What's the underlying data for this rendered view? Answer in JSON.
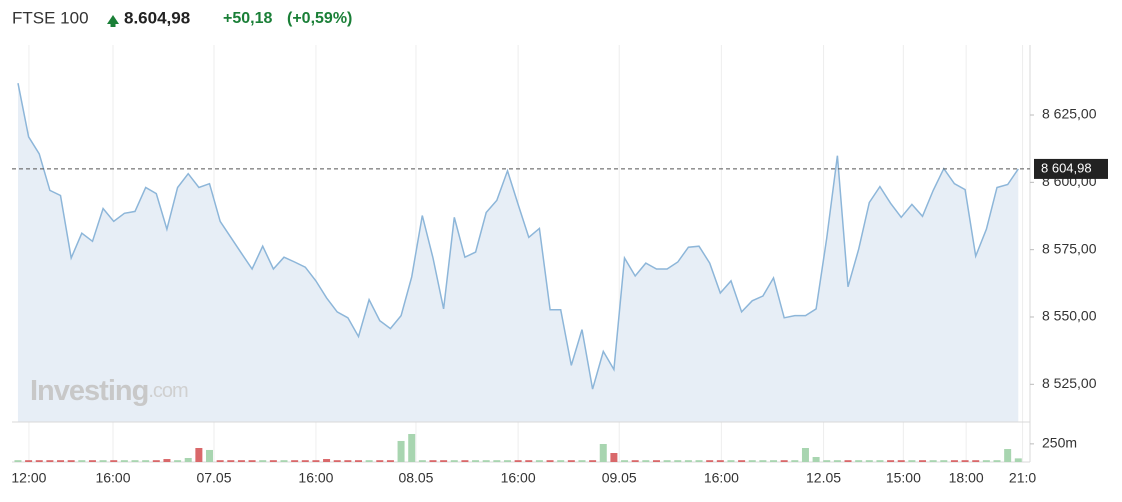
{
  "header": {
    "name": "FTSE 100",
    "price": "8.604,98",
    "change": "+50,18",
    "percent": "(+0,59%)"
  },
  "watermark": [
    "Investing",
    ".com"
  ],
  "chart_data": {
    "type": "area",
    "x": [
      0,
      1,
      2,
      3,
      4,
      5,
      6,
      7,
      8,
      9,
      10,
      11,
      12,
      13,
      14,
      15,
      16,
      17,
      18,
      19,
      20,
      21,
      22,
      23,
      24,
      25,
      26,
      27,
      28,
      29,
      30,
      31,
      32,
      33,
      34,
      35,
      36,
      37,
      38,
      39,
      40,
      41,
      42,
      43,
      44,
      45,
      46,
      47,
      48,
      49,
      50,
      51,
      52,
      53,
      54,
      55,
      56,
      57,
      58,
      59,
      60,
      61,
      62,
      63,
      64,
      65,
      66,
      67,
      68,
      69,
      70,
      71,
      72,
      73,
      74,
      75,
      76,
      77,
      78,
      79,
      80,
      81,
      82,
      83,
      84,
      85,
      86,
      87,
      88,
      89,
      90,
      91,
      92,
      93,
      94
    ],
    "series": [
      {
        "color": "#8db6d9",
        "fill": "#e7eef6",
        "values": [
          8636.8,
          8616.9,
          8610.6,
          8597.0,
          8595.1,
          8571.9,
          8581.1,
          8578.1,
          8590.3,
          8585.5,
          8588.5,
          8589.2,
          8598.1,
          8595.8,
          8582.6,
          8598.1,
          8603.2,
          8598.1,
          8599.5,
          8585.5,
          8579.6,
          8573.7,
          8567.8,
          8576.3,
          8567.8,
          8572.2,
          8570.4,
          8568.5,
          8563.4,
          8557.1,
          8551.9,
          8549.7,
          8542.7,
          8556.4,
          8548.6,
          8545.7,
          8550.5,
          8564.9,
          8587.7,
          8571.9,
          8553.0,
          8587.0,
          8572.2,
          8574.1,
          8588.8,
          8593.3,
          8604.3,
          8591.8,
          8579.6,
          8582.9,
          8552.7,
          8552.7,
          8532.0,
          8545.3,
          8523.2,
          8537.2,
          8530.5,
          8571.9,
          8565.2,
          8570.0,
          8567.8,
          8567.8,
          8570.4,
          8575.9,
          8576.3,
          8570.0,
          8558.9,
          8563.4,
          8551.9,
          8556.0,
          8557.8,
          8564.5,
          8549.7,
          8550.5,
          8550.5,
          8553.0,
          8579.2,
          8609.9,
          8561.2,
          8575.2,
          8592.5,
          8598.4,
          8592.2,
          8587.0,
          8591.8,
          8587.4,
          8597.0,
          8605.1,
          8599.5,
          8597.3,
          8572.6,
          8582.6,
          8598.1,
          8599.2,
          8604.98
        ]
      }
    ],
    "xlim": [
      -0.56,
      95.1
    ],
    "ylim": [
      8511,
      8651
    ],
    "yticks": [
      {
        "value": 8525,
        "label": "8 525,00"
      },
      {
        "value": 8550,
        "label": "8 550,00"
      },
      {
        "value": 8575,
        "label": "8 575,00"
      },
      {
        "value": 8600,
        "label": "8 600,00"
      },
      {
        "value": 8625,
        "label": "8 625,00"
      }
    ],
    "xticks": [
      {
        "value": 1.03,
        "label": "12:00"
      },
      {
        "value": 8.93,
        "label": "16:00"
      },
      {
        "value": 18.42,
        "label": "07.05"
      },
      {
        "value": 28.0,
        "label": "16:00"
      },
      {
        "value": 37.4,
        "label": "08.05"
      },
      {
        "value": 47.0,
        "label": "16:00"
      },
      {
        "value": 56.5,
        "label": "09.05"
      },
      {
        "value": 66.1,
        "label": "16:00"
      },
      {
        "value": 75.7,
        "label": "12.05"
      },
      {
        "value": 83.2,
        "label": "15:00"
      },
      {
        "value": 89.1,
        "label": "18:00"
      },
      {
        "value": 94.4,
        "label": "21:0"
      }
    ],
    "current": {
      "value": 8604.98,
      "label": "8 604,98"
    },
    "volume": {
      "values": [
        25,
        25,
        25,
        25,
        25,
        25,
        25,
        25,
        25,
        25,
        25,
        25,
        25,
        25,
        41,
        25,
        55,
        193,
        166,
        25,
        25,
        25,
        25,
        25,
        25,
        25,
        25,
        25,
        25,
        41,
        25,
        25,
        25,
        25,
        25,
        25,
        290,
        386,
        25,
        25,
        25,
        25,
        25,
        25,
        25,
        25,
        25,
        25,
        25,
        25,
        25,
        25,
        25,
        25,
        25,
        248,
        124,
        25,
        25,
        25,
        25,
        25,
        25,
        25,
        25,
        25,
        25,
        25,
        25,
        25,
        25,
        25,
        25,
        25,
        193,
        69,
        25,
        25,
        25,
        25,
        25,
        25,
        25,
        25,
        25,
        25,
        25,
        25,
        25,
        25,
        25,
        25,
        25,
        179,
        50
      ],
      "ylim": [
        0,
        510
      ],
      "yticks": [
        {
          "value": 250,
          "label": "250m"
        }
      ],
      "up_color": "#a8d5b0",
      "down_color": "#d9686a"
    },
    "grid": true
  }
}
